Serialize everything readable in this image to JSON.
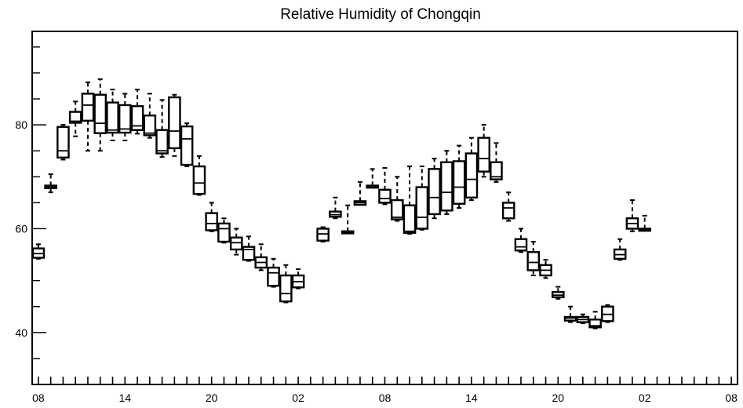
{
  "chart_data": {
    "type": "box",
    "title": "Relative Humidity of Chongqin",
    "xlabel": "",
    "ylabel": "",
    "ylim": [
      30,
      98
    ],
    "xlim": [
      0,
      57
    ],
    "yticks": [
      40,
      60,
      80
    ],
    "xtick_labels": [
      "08",
      "14",
      "20",
      "02",
      "08",
      "14",
      "20",
      "02",
      "08"
    ],
    "xtick_positions": [
      0.5,
      7.5,
      14.5,
      21.5,
      28.5,
      35.5,
      42.5,
      49.5,
      56.5
    ],
    "grid": false,
    "boxes": [
      {
        "x": 0.5,
        "min": 54.2,
        "q1": 54.4,
        "median": 55.2,
        "q3": 56.2,
        "max": 57.0
      },
      {
        "x": 1.5,
        "min": 67.0,
        "q1": 67.8,
        "median": 68.0,
        "q3": 68.3,
        "max": 70.5
      },
      {
        "x": 2.5,
        "min": 73.3,
        "q1": 73.7,
        "median": 75.0,
        "q3": 79.6,
        "max": 80.0
      },
      {
        "x": 3.5,
        "min": 77.8,
        "q1": 80.4,
        "median": 80.7,
        "q3": 82.5,
        "max": 84.5
      },
      {
        "x": 4.5,
        "min": 75.0,
        "q1": 80.8,
        "median": 83.8,
        "q3": 86.0,
        "max": 88.2
      },
      {
        "x": 5.5,
        "min": 75.0,
        "q1": 78.4,
        "median": 80.3,
        "q3": 85.8,
        "max": 88.8
      },
      {
        "x": 6.5,
        "min": 77.0,
        "q1": 78.5,
        "median": 79.0,
        "q3": 84.3,
        "max": 86.8
      },
      {
        "x": 7.5,
        "min": 77.0,
        "q1": 78.5,
        "median": 79.2,
        "q3": 83.8,
        "max": 86.0
      },
      {
        "x": 8.5,
        "min": 78.3,
        "q1": 79.0,
        "median": 79.8,
        "q3": 83.6,
        "max": 86.8
      },
      {
        "x": 9.5,
        "min": 77.5,
        "q1": 78.0,
        "median": 78.4,
        "q3": 81.8,
        "max": 86.0
      },
      {
        "x": 10.5,
        "min": 73.8,
        "q1": 74.5,
        "median": 75.0,
        "q3": 79.0,
        "max": 84.8
      },
      {
        "x": 11.5,
        "min": 74.0,
        "q1": 75.5,
        "median": 78.8,
        "q3": 85.3,
        "max": 85.8
      },
      {
        "x": 12.5,
        "min": 72.0,
        "q1": 72.3,
        "median": 77.3,
        "q3": 79.7,
        "max": 80.3
      },
      {
        "x": 13.5,
        "min": 66.5,
        "q1": 66.7,
        "median": 68.8,
        "q3": 72.0,
        "max": 74.0
      },
      {
        "x": 14.5,
        "min": 59.5,
        "q1": 59.7,
        "median": 61.0,
        "q3": 63.0,
        "max": 65.0
      },
      {
        "x": 15.5,
        "min": 57.3,
        "q1": 57.5,
        "median": 60.0,
        "q3": 61.0,
        "max": 62.0
      },
      {
        "x": 16.5,
        "min": 55.0,
        "q1": 56.0,
        "median": 57.3,
        "q3": 58.3,
        "max": 60.0
      },
      {
        "x": 17.5,
        "min": 53.8,
        "q1": 54.0,
        "median": 56.0,
        "q3": 56.5,
        "max": 58.5
      },
      {
        "x": 18.5,
        "min": 52.0,
        "q1": 52.5,
        "median": 53.5,
        "q3": 54.5,
        "max": 57.0
      },
      {
        "x": 19.5,
        "min": 48.8,
        "q1": 49.0,
        "median": 51.5,
        "q3": 52.5,
        "max": 54.2
      },
      {
        "x": 20.5,
        "min": 45.8,
        "q1": 46.0,
        "median": 47.5,
        "q3": 51.0,
        "max": 53.0
      },
      {
        "x": 21.5,
        "min": 48.5,
        "q1": 48.7,
        "median": 49.8,
        "q3": 51.0,
        "max": 52.2
      },
      {
        "x": 23.5,
        "min": 57.5,
        "q1": 57.7,
        "median": 59.0,
        "q3": 60.0,
        "max": 60.3
      },
      {
        "x": 24.5,
        "min": 62.0,
        "q1": 62.3,
        "median": 62.7,
        "q3": 63.3,
        "max": 66.0
      },
      {
        "x": 25.5,
        "min": 59.0,
        "q1": 59.1,
        "median": 59.3,
        "q3": 59.5,
        "max": 64.5
      },
      {
        "x": 26.5,
        "min": 64.5,
        "q1": 64.6,
        "median": 65.0,
        "q3": 65.3,
        "max": 69.0
      },
      {
        "x": 27.5,
        "min": 67.8,
        "q1": 67.9,
        "median": 68.0,
        "q3": 68.3,
        "max": 71.5
      },
      {
        "x": 28.5,
        "min": 64.7,
        "q1": 65.0,
        "median": 65.8,
        "q3": 67.5,
        "max": 71.7
      },
      {
        "x": 29.5,
        "min": 61.5,
        "q1": 61.8,
        "median": 62.2,
        "q3": 65.5,
        "max": 70.0
      },
      {
        "x": 30.5,
        "min": 59.0,
        "q1": 59.2,
        "median": 59.5,
        "q3": 64.5,
        "max": 72.0
      },
      {
        "x": 31.5,
        "min": 59.8,
        "q1": 60.0,
        "median": 62.2,
        "q3": 68.0,
        "max": 72.0
      },
      {
        "x": 32.5,
        "min": 62.0,
        "q1": 62.8,
        "median": 66.0,
        "q3": 71.5,
        "max": 73.5
      },
      {
        "x": 33.5,
        "min": 62.8,
        "q1": 63.5,
        "median": 67.0,
        "q3": 72.8,
        "max": 75.0
      },
      {
        "x": 34.5,
        "min": 64.0,
        "q1": 64.8,
        "median": 68.0,
        "q3": 73.0,
        "max": 76.0
      },
      {
        "x": 35.5,
        "min": 65.5,
        "q1": 66.0,
        "median": 69.5,
        "q3": 74.5,
        "max": 77.5
      },
      {
        "x": 36.5,
        "min": 70.0,
        "q1": 71.0,
        "median": 73.5,
        "q3": 77.5,
        "max": 80.0
      },
      {
        "x": 37.5,
        "min": 69.0,
        "q1": 69.5,
        "median": 70.0,
        "q3": 72.8,
        "max": 76.5
      },
      {
        "x": 38.5,
        "min": 61.5,
        "q1": 62.0,
        "median": 64.0,
        "q3": 65.0,
        "max": 67.0
      },
      {
        "x": 39.5,
        "min": 55.5,
        "q1": 55.8,
        "median": 56.5,
        "q3": 58.0,
        "max": 60.0
      },
      {
        "x": 40.5,
        "min": 51.0,
        "q1": 52.0,
        "median": 53.5,
        "q3": 55.5,
        "max": 57.5
      },
      {
        "x": 41.5,
        "min": 50.5,
        "q1": 51.0,
        "median": 52.0,
        "q3": 53.0,
        "max": 54.0
      },
      {
        "x": 42.5,
        "min": 46.5,
        "q1": 46.8,
        "median": 47.2,
        "q3": 47.8,
        "max": 48.8
      },
      {
        "x": 43.5,
        "min": 42.0,
        "q1": 42.3,
        "median": 42.8,
        "q3": 43.0,
        "max": 45.0
      },
      {
        "x": 44.5,
        "min": 41.8,
        "q1": 42.0,
        "median": 42.5,
        "q3": 43.0,
        "max": 43.5
      },
      {
        "x": 45.5,
        "min": 40.8,
        "q1": 41.0,
        "median": 41.3,
        "q3": 42.5,
        "max": 44.0
      },
      {
        "x": 46.5,
        "min": 42.0,
        "q1": 42.2,
        "median": 43.5,
        "q3": 45.0,
        "max": 45.3
      },
      {
        "x": 47.5,
        "min": 54.0,
        "q1": 54.2,
        "median": 55.0,
        "q3": 56.0,
        "max": 58.0
      },
      {
        "x": 48.5,
        "min": 59.5,
        "q1": 60.0,
        "median": 61.0,
        "q3": 62.0,
        "max": 65.5
      },
      {
        "x": 49.5,
        "min": 59.5,
        "q1": 59.6,
        "median": 59.8,
        "q3": 60.0,
        "max": 62.5
      }
    ]
  }
}
